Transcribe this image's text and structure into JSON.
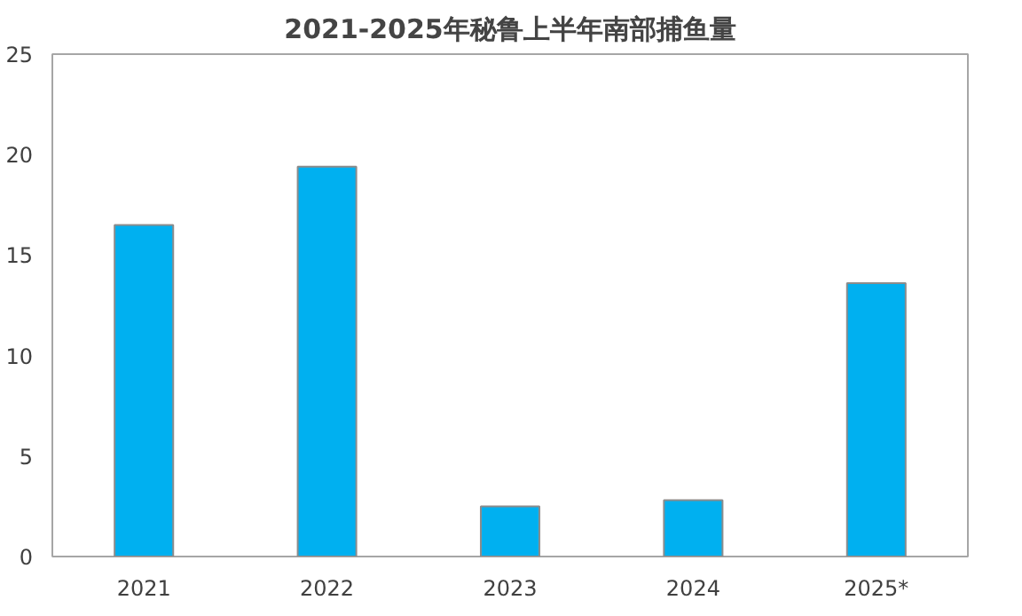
{
  "chart_data": {
    "type": "bar",
    "title": "2021-2025年秘鲁上半年南部捕鱼量",
    "categories": [
      "2021",
      "2022",
      "2023",
      "2024",
      "2025*"
    ],
    "values": [
      16.5,
      19.4,
      2.5,
      2.8,
      13.6
    ],
    "color": "#00b0f0",
    "ylim": [
      0,
      25
    ],
    "yticks": [
      0,
      5,
      10,
      15,
      20,
      25
    ],
    "grid": false
  }
}
